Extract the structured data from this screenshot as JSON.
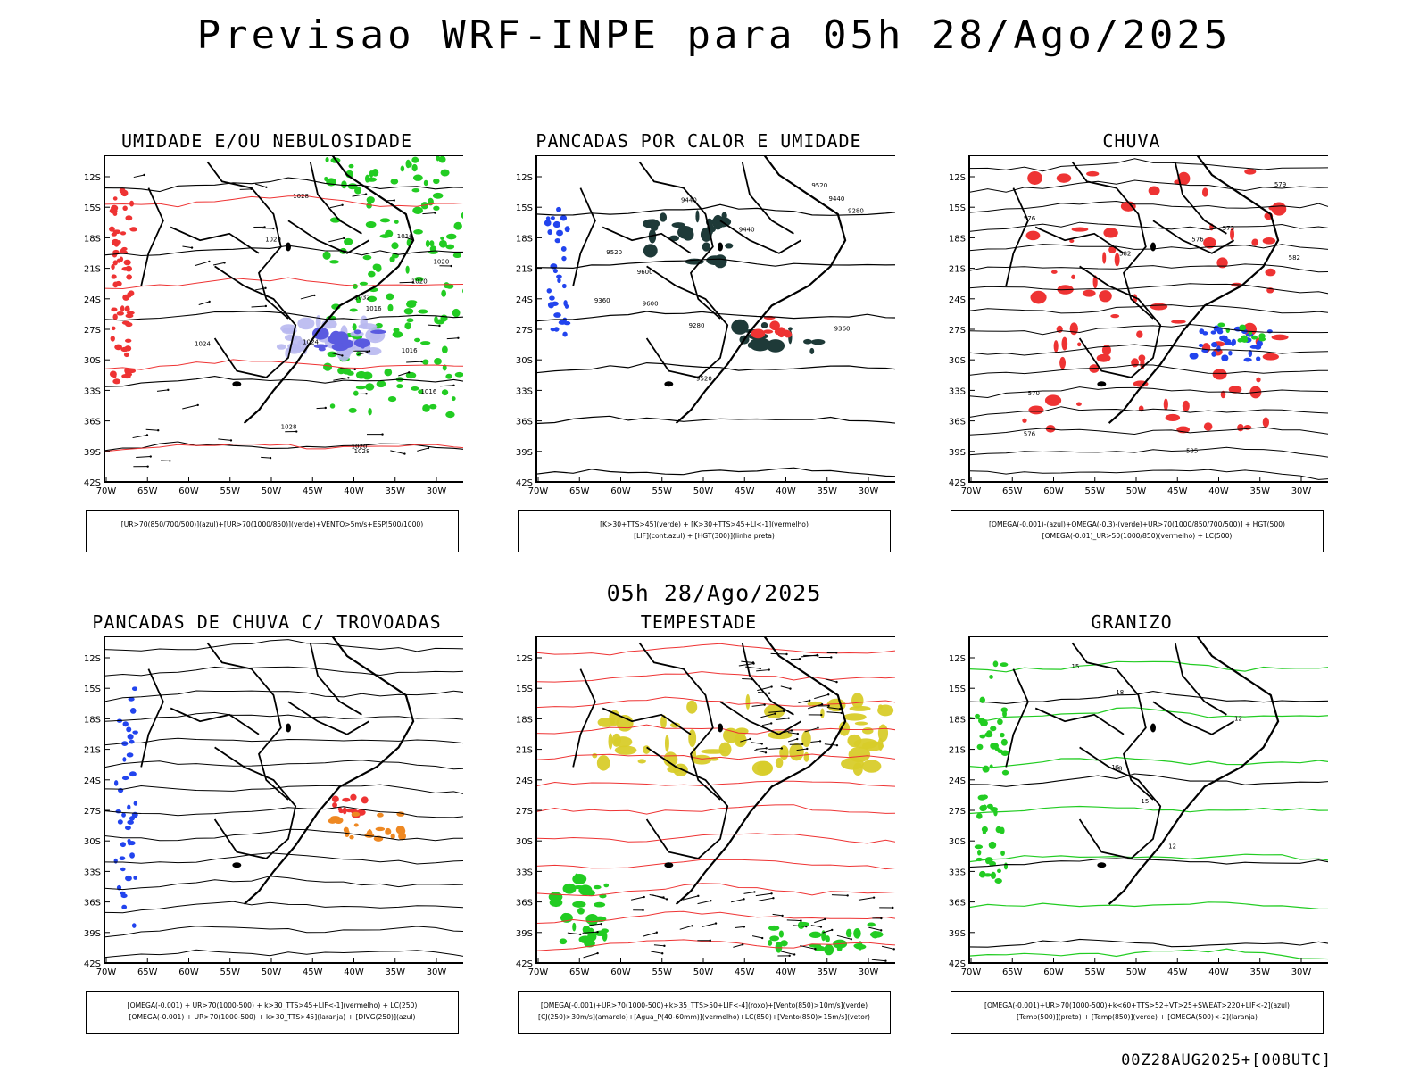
{
  "header": {
    "title": "Previsao WRF-INPE  para 05h 28/Ago/2025",
    "mid_title": "05h 28/Ago/2025",
    "run_stamp": "00Z28AUG2025+[008UTC]"
  },
  "axes": {
    "lat_labels": [
      "12S",
      "15S",
      "18S",
      "21S",
      "24S",
      "27S",
      "30S",
      "33S",
      "36S",
      "39S",
      "42S"
    ],
    "lon_labels": [
      "70W",
      "65W",
      "60W",
      "55W",
      "50W",
      "45W",
      "40W",
      "35W",
      "30W"
    ]
  },
  "panels": [
    {
      "title": "UMIDADE E/OU NEBULOSIDADE",
      "legend": [
        "[UR>70(850/700/500)](azul)+[UR>70(1000/850)](verde)+VENTO>5m/s+ESP(500/1000)"
      ],
      "labels": [
        "1016",
        "1016",
        "1016",
        "1020",
        "1020",
        "1020",
        "1020",
        "1024",
        "1024",
        "1028",
        "1028",
        "1032",
        "1016",
        "1028"
      ]
    },
    {
      "title": "PANCADAS POR CALOR E UMIDADE",
      "legend": [
        "[K>30+TTS>45](verde) + [K>30+TTS>45+LI<-1](vermelho)",
        "[LIF](cont.azul) + [HGT(300)](linha preta)"
      ],
      "labels": [
        "9600",
        "9600",
        "9520",
        "9520",
        "9440",
        "9440",
        "9440",
        "9520",
        "9360",
        "9360",
        "9280",
        "9280"
      ]
    },
    {
      "title": "CHUVA",
      "legend": [
        "[OMEGA(-0.001)-(azul)+OMEGA(-0.3)-(verde)+UR>70(1000/850/700/500)] + HGT(500)",
        "[OMEGA(-0.01)_UR>50(1000/850)(vermelho) + LC(500)"
      ],
      "labels": [
        "585",
        "582",
        "582",
        "579",
        "576",
        "576",
        "573",
        "570",
        "576"
      ]
    },
    {
      "title": "PANCADAS DE CHUVA C/ TROVOADAS",
      "legend": [
        "[OMEGA(-0.001) + UR>70(1000-500) + k>30_TTS>45+LIF<-1](vermelho) + LC(250)",
        "[OMEGA(-0.001) + UR>70(1000-500) + k>30_TTS>45](laranja) + [DIVG(250)](azul)"
      ],
      "labels": []
    },
    {
      "title": "TEMPESTADE",
      "legend": [
        "[OMEGA(-0.001)+UR>70(1000-500)+k>35_TTS>50+LIF<-4](roxo)+[Vento(850)>10m/s](verde)",
        "[CJ(250)>30m/s](amarelo)+[Agua_P(40-60mm)](vermelho)+LC(850)+[Vento(850)>15m/s](vetor)"
      ],
      "labels": []
    },
    {
      "title": "GRANIZO",
      "legend": [
        "[OMEGA(-0.001)+UR>70(1000-500)+k<60+TTS>52+VT>25+SWEAT>220+LIF<-2](azul)",
        "[Temp(500)](preto) + [Temp(850)](verde) + [OMEGA(500)<-2](laranja)"
      ],
      "labels": [
        "12",
        "15",
        "18",
        "15",
        "18",
        "12",
        "15"
      ]
    }
  ],
  "colors": {
    "green": "#22cc22",
    "red": "#ee3333",
    "blue": "#2244ee",
    "lightblue": "#b8b8f0",
    "darkteal": "#1e3a38",
    "yellow": "#d8cc2a",
    "orange": "#ee8822"
  }
}
